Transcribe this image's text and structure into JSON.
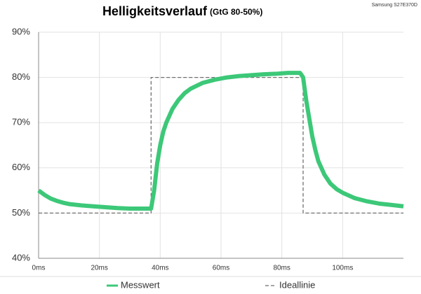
{
  "chart_data": {
    "type": "line",
    "title": "Helligkeitsverlauf",
    "subtitle": "(GtG 80-50%)",
    "annotation": "Samsung S27E370D",
    "xlim": [
      0,
      120
    ],
    "ylim": [
      40,
      90
    ],
    "xticks": [
      {
        "value": 0,
        "label": "0ms"
      },
      {
        "value": 20,
        "label": "20ms"
      },
      {
        "value": 40,
        "label": "40ms"
      },
      {
        "value": 60,
        "label": "60ms"
      },
      {
        "value": 80,
        "label": "80ms"
      },
      {
        "value": 100,
        "label": "100ms"
      }
    ],
    "yticks": [
      {
        "value": 40,
        "label": "40%"
      },
      {
        "value": 50,
        "label": "50%"
      },
      {
        "value": 60,
        "label": "60%"
      },
      {
        "value": 70,
        "label": "70%"
      },
      {
        "value": 80,
        "label": "80%"
      },
      {
        "value": 90,
        "label": "90%"
      }
    ],
    "grid": true,
    "legend": "bottom",
    "series": [
      {
        "name": "Messwert",
        "color": "#3cc878",
        "dashed": false,
        "x": [
          0,
          2,
          4,
          6,
          8,
          10,
          14,
          18,
          22,
          26,
          30,
          34,
          36,
          37,
          38,
          39,
          40,
          41,
          42,
          44,
          46,
          48,
          50,
          54,
          58,
          62,
          66,
          70,
          74,
          78,
          82,
          86,
          87,
          88,
          89,
          90,
          91,
          92,
          94,
          96,
          98,
          100,
          104,
          108,
          112,
          116,
          120
        ],
        "values": [
          55,
          54,
          53.2,
          52.7,
          52.3,
          52,
          51.7,
          51.5,
          51.3,
          51.1,
          51,
          51,
          51,
          51,
          55,
          61,
          65,
          68,
          70,
          73,
          75,
          76.5,
          77.5,
          78.8,
          79.5,
          80,
          80.3,
          80.5,
          80.7,
          80.8,
          81,
          81,
          80,
          75,
          71,
          67,
          64,
          61.5,
          58.5,
          56.5,
          55.3,
          54.5,
          53.3,
          52.6,
          52.1,
          51.8,
          51.5
        ]
      },
      {
        "name": "Ideallinie",
        "color": "#707070",
        "dashed": true,
        "x": [
          0,
          37,
          37,
          87,
          87,
          120
        ],
        "values": [
          50,
          50,
          80,
          80,
          50,
          50
        ]
      }
    ]
  }
}
